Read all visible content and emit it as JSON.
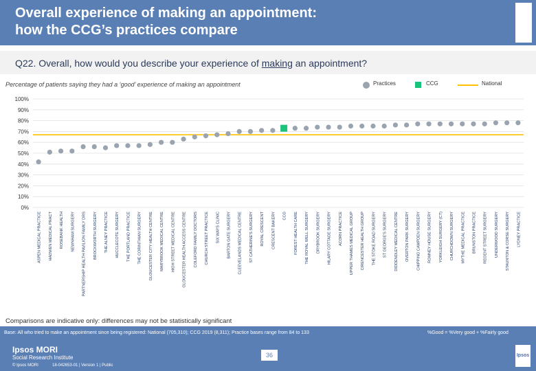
{
  "slide": {
    "title": "Overall experience of making an appointment:\nhow the CCG’s practices compare",
    "question_prefix": "Q22. Overall, how would you describe your experience of ",
    "question_underlined": "making",
    "question_suffix": " an appointment?",
    "subtitle": "Percentage of patients saying they had a ‘good’ experience of making an appointment",
    "comparison_note": "Comparisons are indicative only: differences may not be statistically significant",
    "base_note": "Base: All who tried to make an appointment since being registered: National (705,310); CCG 2019 (8,311); Practice bases range from 84 to 133",
    "formula_note": "%Good = %Very good + %Fairly good",
    "brand_name": "Ipsos MORI",
    "brand_sub": "Social Research Institute",
    "copyright": "© Ipsos MORI",
    "job_ref": "18-042653-01 | Version 1 | Public",
    "page_number": "36",
    "logo_text": "Ipsos"
  },
  "legend": {
    "practices": "Practices",
    "ccg": "CCG",
    "national": "National"
  },
  "colors": {
    "header": "#5a7fb4",
    "practice": "#9aa3b0",
    "ccg": "#19c37a",
    "national": "#ffc000",
    "grid": "#e0e0e0"
  },
  "chart_data": {
    "type": "scatter",
    "title": "Percentage of patients saying they had a ‘good’ experience of making an appointment",
    "y_ticks": [
      "100%",
      "90%",
      "80%",
      "70%",
      "60%",
      "50%",
      "40%",
      "30%",
      "20%",
      "10%",
      "0%"
    ],
    "ylim": [
      0,
      100
    ],
    "national_value": 67,
    "ccg_category": "CCG",
    "categories": [
      "ASPEN MEDICAL PRACTICE",
      "HADWEN MEDICAL PRACT",
      "ROSEBANK HEALTH",
      "NEWNHAM SURGERY",
      "PARTNERSHIP HEALTH PAVILION FAMILY DRS",
      "BROCKWORTH SURGERY",
      "THE ALNEY PRACTICE",
      "HUCCLECOTE SURGERY",
      "THE PORTLAND PRACTICE",
      "THE CORINTHIAN SURGERY",
      "GLOUCESTER CITY HEALTH CENTRE",
      "MARYBROOK MEDICAL CENTRE",
      "HIGH STREET MEDICAL CENTRE",
      "GLOUCESTER HEALTH ACCESS CENTRE",
      "COLEFORD FAMILY DOCTORS",
      "CHURCH STREET PRACTICE",
      "SIX WAYS CLINIC",
      "BARTON GATE SURGERY",
      "CLEEVELANDS MEDICAL CENTRE",
      "ST CATHERINE'S SURGERY",
      "ROYAL CRESCENT",
      "CRESCENT BAKERY",
      "CCG",
      "FOREST HEALTH CARE",
      "THE ROYAL WELL SURGERY",
      "DRYBROOK SURGERY",
      "HILARY COTTAGE SURGERY",
      "ACORN PRACTICE",
      "UPPER THAMES MEDICAL GROUP",
      "CIRENCESTER HEALTH GROUP",
      "THE STOKE ROAD SURGERY",
      "ST GEORGE'S SURGERY",
      "DIDDENDLEY MEDICAL CENTRE",
      "OVERTON PARK SURGERY",
      "CHIPPING CAMPDEN SURGERY",
      "ROMNEY HOUSE SURGERY",
      "YORKLEIGH SURGERY (CT)",
      "CHURCHDOWN SURGERY",
      "MYTHE MEDICAL PRACTICE",
      "BRUNSTON PRACTICE",
      "REGENT STREET SURGERY",
      "UNDERWOOD SURGERY",
      "STAUNTON & CORSE SURGERY",
      "LYDNEY PRACTICE"
    ],
    "values": [
      42,
      51,
      52,
      52,
      56,
      56,
      55,
      57,
      57,
      57,
      58,
      60,
      60,
      63,
      65,
      66,
      67,
      68,
      70,
      70,
      71,
      71,
      73,
      73,
      73,
      74,
      74,
      74,
      75,
      75,
      75,
      75,
      76,
      76,
      77,
      77,
      77,
      77,
      77,
      77,
      77,
      78,
      78,
      78
    ]
  }
}
